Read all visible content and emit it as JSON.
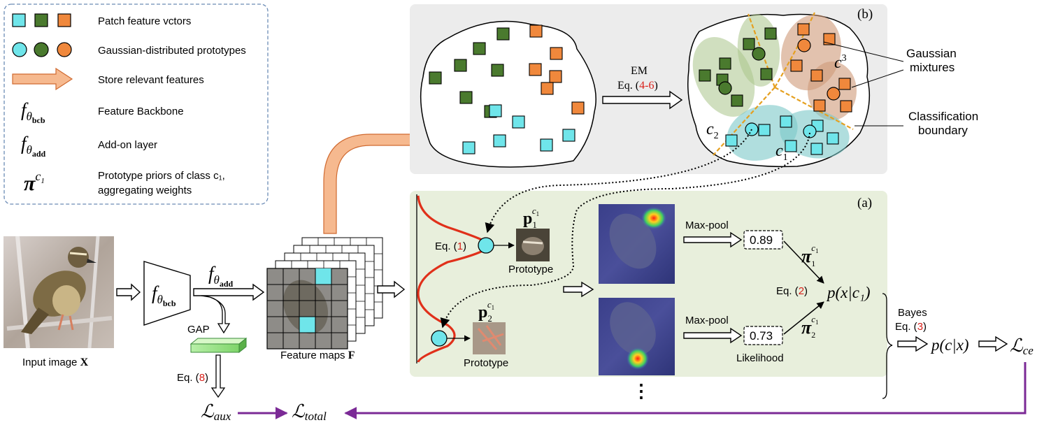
{
  "legend": {
    "patch_features": "Patch feature vctors",
    "prototypes": "Gaussian-distributed prototypes",
    "store": "Store relevant features",
    "backbone": "Feature Backbone",
    "addon": "Add-on layer",
    "priors_line1": "Prototype priors of class c₁,",
    "priors_line2": "aggregating weights"
  },
  "math": {
    "f": "f",
    "theta": "θ",
    "bcb": "bcb",
    "add": "add",
    "pi": "π",
    "c1": "c",
    "sub1": "1",
    "sub2": "2",
    "sub3": "3",
    "p": "p"
  },
  "input_label_text": "Input image ",
  "input_label_bold": "X",
  "gap_label": "GAP",
  "eq8_label": "Eq. (",
  "eq8_num": "8",
  "close_paren": ")",
  "loss_aux": "ℒ",
  "aux_sub": "aux",
  "loss_total": "ℒ",
  "total_sub": "total",
  "feature_maps_text": "Feature maps ",
  "feature_maps_bold": "F",
  "panel_b_tag": "(b)",
  "panel_a_tag": "(a)",
  "em_label": "EM",
  "em_eq_prefix": "Eq. (",
  "em_eq_num": "4-6",
  "gaussian_mixtures_1": "Gaussian",
  "gaussian_mixtures_2": "mixtures",
  "classification_boundary_1": "Classification",
  "classification_boundary_2": "boundary",
  "eq1_prefix": "Eq. (",
  "eq1_num": "1",
  "prototype_label": "Prototype",
  "maxpool_label": "Max-pool",
  "score_1": "0.89",
  "score_2": "0.73",
  "likelihood_label": "Likelihood",
  "eq2_prefix": "Eq. (",
  "eq2_num": "2",
  "pxc_text": "p(x|c₁)",
  "bayes_label": "Bayes",
  "eq3_prefix": "Eq. (",
  "eq3_num": "3",
  "pcx_text": "p(c|x)",
  "loss_ce": "ℒ",
  "ce_sub": "ce",
  "ellipsis": "⋮",
  "colors": {
    "green": "#4a7a2e",
    "cyan": "#6fe5ea",
    "orange": "#f0883c",
    "arrow_orange": "#f6b98f",
    "purple": "#7b2a96",
    "red": "#e0301a",
    "eq_red": "#d8201a",
    "panel_gray": "#ececec",
    "panel_green": "#e8efdc",
    "boundary": "#e5a020"
  }
}
